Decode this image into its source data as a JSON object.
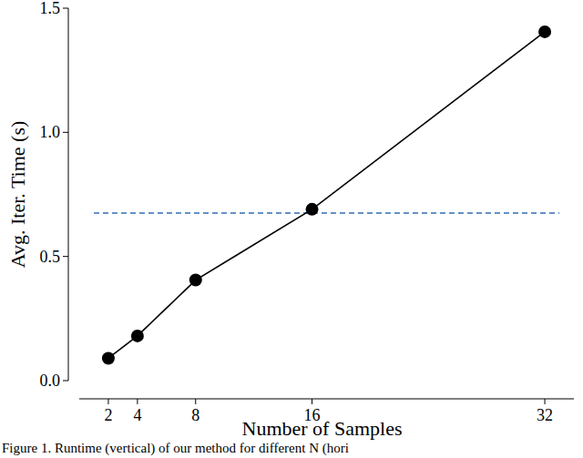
{
  "chart_data": {
    "type": "line",
    "x_label": "Number of Samples",
    "y_label": "Avg. Iter. Time (s)",
    "caption": "Figure 1. Runtime (vertical) of our method for different N (hori",
    "x": [
      2,
      4,
      8,
      16,
      32
    ],
    "series": [
      {
        "color": "#000000",
        "marker": "circle",
        "line_style": "solid",
        "values": [
          0.09,
          0.18,
          0.405,
          0.69,
          1.405
        ]
      }
    ],
    "reference_line": {
      "y": 0.675,
      "x": [
        1,
        33
      ],
      "color": "#2f6db5",
      "line_style": "dashed"
    },
    "xlim": [
      0,
      34
    ],
    "xticks": [
      2,
      4,
      8,
      16,
      32
    ],
    "ylim": [
      0,
      1.5
    ],
    "yticks": [
      {
        "value": 0,
        "label": "0.0"
      },
      {
        "value": 0.5,
        "label": "0.5"
      },
      {
        "value": 1,
        "label": "1.0"
      },
      {
        "value": 1.5,
        "label": "1.5"
      }
    ],
    "grid": false
  }
}
